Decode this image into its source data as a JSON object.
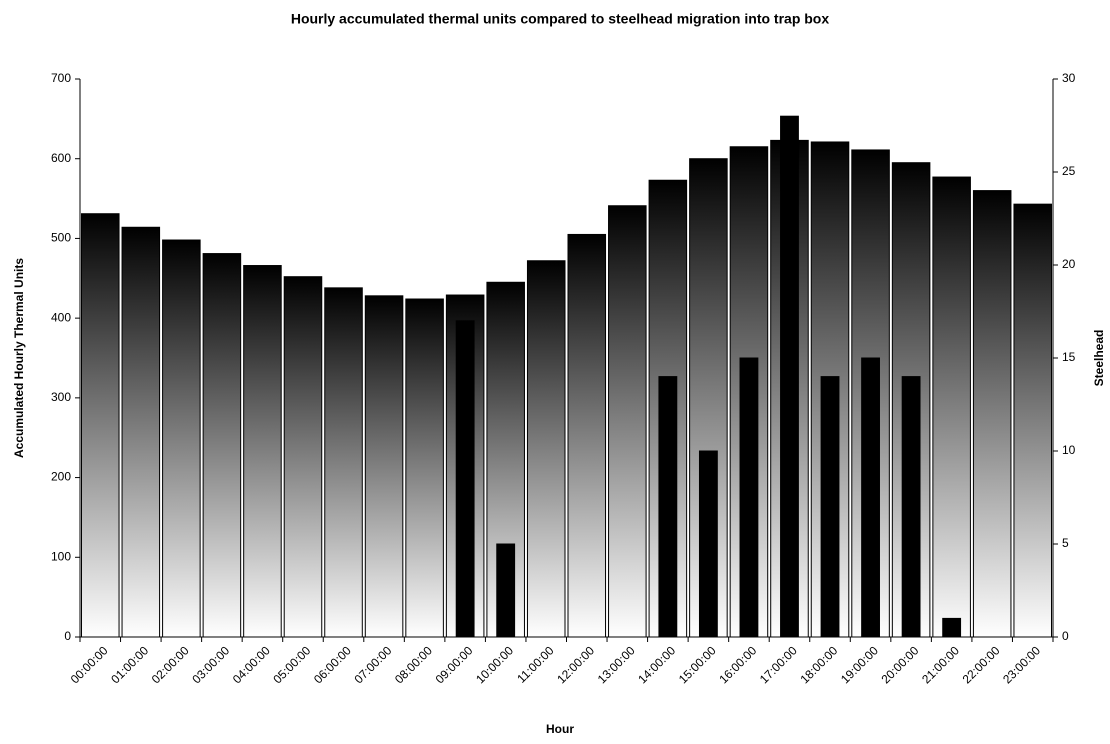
{
  "chart_data": {
    "type": "bar",
    "title": "Hourly accumulated thermal units compared to steelhead migration into trap box",
    "x_label": "Hour",
    "y_label": "Accumulated Hourly Thermal Units",
    "y2_label": "Steelhead",
    "categories": [
      "00:00:00",
      "01:00:00",
      "02:00:00",
      "03:00:00",
      "04:00:00",
      "05:00:00",
      "06:00:00",
      "07:00:00",
      "08:00:00",
      "09:00:00",
      "10:00:00",
      "11:00:00",
      "12:00:00",
      "13:00:00",
      "14:00:00",
      "15:00:00",
      "16:00:00",
      "17:00:00",
      "18:00:00",
      "19:00:00",
      "20:00:00",
      "21:00:00",
      "22:00:00",
      "23:00:00"
    ],
    "series": [
      {
        "name": "Accumulated Hourly Thermal Units",
        "color": "#000000",
        "gradient": true,
        "values": [
          531,
          514,
          498,
          481,
          466,
          452,
          438,
          428,
          424,
          429,
          445,
          472,
          505,
          541,
          573,
          600,
          615,
          623,
          621,
          611,
          595,
          577,
          560,
          543
        ]
      },
      {
        "name": "Steelhead",
        "color": "#000000",
        "axis": "y2",
        "values": [
          0,
          0,
          0,
          0,
          0,
          0,
          0,
          0,
          0,
          17,
          5,
          0,
          0,
          0,
          14,
          10,
          15,
          28,
          14,
          15,
          14,
          1,
          0,
          0
        ]
      }
    ],
    "ylim": [
      0,
      700
    ],
    "yticks": [
      0,
      100,
      200,
      300,
      400,
      500,
      600,
      700
    ],
    "y2lim": [
      0,
      30
    ],
    "y2ticks": [
      0,
      5,
      10,
      15,
      20,
      25,
      30
    ],
    "grid": false
  }
}
